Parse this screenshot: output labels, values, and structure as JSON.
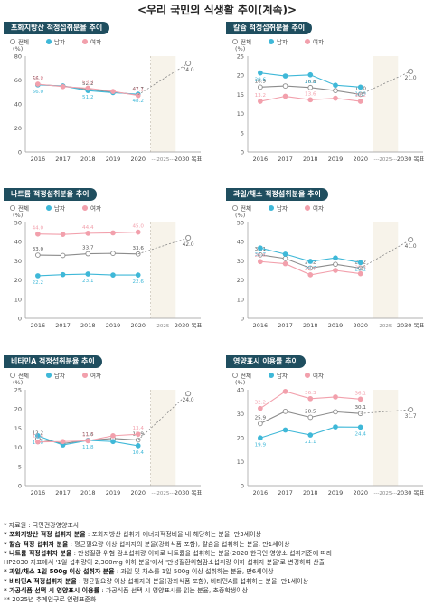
{
  "page_title": "<우리 국민의 식생활 추이(계속)>",
  "legend_labels": {
    "all": "전체",
    "male": "남자",
    "female": "여자"
  },
  "colors": {
    "all": "#8c8c8c",
    "male": "#3fb8d8",
    "female": "#f2a0ac",
    "target": "#888888",
    "header_bg": "#1f4e5f",
    "target_band": "#f7f3ea"
  },
  "chart_data": [
    {
      "id": "fat",
      "type": "line",
      "title": "포화지방산 적정섭취분율 추이",
      "unit": "(%)",
      "x": [
        "2016",
        "2017",
        "2018",
        "2019",
        "2020"
      ],
      "target_band_label": "---2025---",
      "target_label": "2030 목표",
      "ylim": [
        0,
        80
      ],
      "yticks": [
        0,
        20,
        40,
        60,
        80
      ],
      "grid": false,
      "legend": "top-left",
      "series": [
        {
          "key": "all",
          "name": "전체",
          "values": [
            56.2,
            55.0,
            52.2,
            50.0,
            47.7
          ],
          "labels": [
            "56.2",
            "",
            "52.2",
            "",
            "47.7"
          ]
        },
        {
          "key": "male",
          "name": "남자",
          "values": [
            56.0,
            55.0,
            51.2,
            49.5,
            48.2
          ],
          "labels": [
            "56.0",
            "",
            "51.2",
            "",
            "48.2"
          ]
        },
        {
          "key": "female",
          "name": "여자",
          "values": [
            56.6,
            54.5,
            53.2,
            50.5,
            47.1
          ],
          "labels": [
            "56.6",
            "",
            "53.2",
            "",
            "47.1"
          ]
        }
      ],
      "target": {
        "value": 74.0,
        "label": "74.0"
      }
    },
    {
      "id": "calcium",
      "type": "line",
      "title": "칼슘 적정섭취분율 추이",
      "unit": "(%)",
      "x": [
        "2016",
        "2017",
        "2018",
        "2019",
        "2020"
      ],
      "target_band_label": "---2025---",
      "target_label": "2030 목표",
      "ylim": [
        0,
        25
      ],
      "yticks": [
        0,
        5,
        10,
        15,
        20,
        25
      ],
      "grid": false,
      "legend": "top-left",
      "series": [
        {
          "key": "all",
          "name": "전체",
          "values": [
            16.9,
            17.2,
            16.8,
            16.0,
            15.0
          ],
          "labels": [
            "16.9",
            "",
            "16.8",
            "",
            "15.0"
          ]
        },
        {
          "key": "male",
          "name": "남자",
          "values": [
            20.6,
            19.8,
            20.1,
            17.4,
            16.9
          ],
          "labels": [
            "20.6",
            "",
            "20.1",
            "",
            "16.9"
          ]
        },
        {
          "key": "female",
          "name": "여자",
          "values": [
            13.2,
            14.5,
            13.6,
            14.0,
            13.2
          ],
          "labels": [
            "13.2",
            "",
            "13.6",
            "",
            "13.2"
          ]
        }
      ],
      "target": {
        "value": 21.0,
        "label": "21.0"
      }
    },
    {
      "id": "sodium",
      "type": "line",
      "title": "나트륨 적정섭취분율 추이",
      "unit": "(%)",
      "x": [
        "2016",
        "2017",
        "2018",
        "2019",
        "2020"
      ],
      "target_band_label": "---2025---",
      "target_label": "2030 목표",
      "ylim": [
        0,
        50
      ],
      "yticks": [
        0,
        10,
        20,
        30,
        40,
        50
      ],
      "grid": false,
      "legend": "top-left",
      "series": [
        {
          "key": "all",
          "name": "전체",
          "values": [
            33.0,
            32.8,
            33.7,
            33.9,
            33.6
          ],
          "labels": [
            "33.0",
            "",
            "33.7",
            "",
            "33.6"
          ]
        },
        {
          "key": "male",
          "name": "남자",
          "values": [
            22.2,
            22.8,
            23.1,
            22.6,
            22.6
          ],
          "labels": [
            "22.2",
            "",
            "23.1",
            "",
            "22.6"
          ]
        },
        {
          "key": "female",
          "name": "여자",
          "values": [
            44.0,
            43.8,
            44.4,
            44.6,
            45.0
          ],
          "labels": [
            "44.0",
            "",
            "44.4",
            "",
            "45.0"
          ]
        }
      ],
      "target": {
        "value": 42.0,
        "label": "42.0"
      }
    },
    {
      "id": "fruitveg",
      "type": "line",
      "title": "과일/채소 적정섭취분율 추이",
      "unit": "(%)",
      "x": [
        "2016",
        "2017",
        "2018",
        "2019",
        "2020"
      ],
      "target_band_label": "---2025---",
      "target_label": "2030 목표",
      "ylim": [
        0,
        50
      ],
      "yticks": [
        0,
        10,
        20,
        30,
        40,
        50
      ],
      "grid": false,
      "legend": "top-left",
      "series": [
        {
          "key": "all",
          "name": "전체",
          "values": [
            33.1,
            31.2,
            26.2,
            28.2,
            26.2
          ],
          "labels": [
            "33.1",
            "",
            "26.2",
            "",
            "26.2"
          ]
        },
        {
          "key": "male",
          "name": "남자",
          "values": [
            36.7,
            33.5,
            29.7,
            31.5,
            29.1
          ],
          "labels": [
            "36.7",
            "",
            "29.7",
            "",
            "29.1"
          ]
        },
        {
          "key": "female",
          "name": "여자",
          "values": [
            29.6,
            28.5,
            22.7,
            25.0,
            23.3
          ],
          "labels": [
            "29.6",
            "",
            "22.7",
            "",
            "23.3"
          ]
        }
      ],
      "target": {
        "value": 41.0,
        "label": "41.0"
      }
    },
    {
      "id": "vitamin_a",
      "type": "line",
      "title": "비타민A 적정섭취분율 추이",
      "unit": "(%)",
      "x": [
        "2016",
        "2017",
        "2018",
        "2019",
        "2020"
      ],
      "target_band_label": "---2025---",
      "target_label": "2030 목표",
      "ylim": [
        0,
        25
      ],
      "yticks": [
        0,
        5,
        10,
        15,
        20,
        25
      ],
      "grid": false,
      "legend": "top-left",
      "series": [
        {
          "key": "all",
          "name": "전체",
          "values": [
            12.2,
            11.0,
            11.8,
            12.3,
            11.9
          ],
          "labels": [
            "12.2",
            "",
            "11.8",
            "",
            "11.9"
          ]
        },
        {
          "key": "male",
          "name": "남자",
          "values": [
            13.0,
            10.6,
            11.8,
            11.5,
            10.4
          ],
          "labels": [
            "13.0",
            "",
            "11.8",
            "",
            "10.4"
          ]
        },
        {
          "key": "female",
          "name": "여자",
          "values": [
            11.4,
            11.5,
            11.7,
            13.0,
            13.4
          ],
          "labels": [
            "11.4",
            "",
            "11.7",
            "",
            "13.4"
          ]
        }
      ],
      "target": {
        "value": 24.0,
        "label": "24.0"
      }
    },
    {
      "id": "nutrition_label",
      "type": "line",
      "title": "영양표시 이용률 추이",
      "unit": "(%)",
      "x": [
        "2016",
        "2017",
        "2018",
        "2019",
        "2020"
      ],
      "target_band_label": "---2025---",
      "target_label": "2030 목표",
      "ylim": [
        0,
        40
      ],
      "yticks": [
        0,
        10,
        20,
        30,
        40
      ],
      "grid": false,
      "legend": "top-left",
      "series": [
        {
          "key": "all",
          "name": "전체",
          "values": [
            25.9,
            31.0,
            28.5,
            30.8,
            30.1
          ],
          "labels": [
            "25.9",
            "",
            "28.5",
            "",
            "30.1"
          ]
        },
        {
          "key": "male",
          "name": "남자",
          "values": [
            19.9,
            23.2,
            21.1,
            24.5,
            24.4
          ],
          "labels": [
            "19.9",
            "",
            "21.1",
            "",
            "24.4"
          ]
        },
        {
          "key": "female",
          "name": "여자",
          "values": [
            32.2,
            39.3,
            36.3,
            37.0,
            36.1
          ],
          "labels": [
            "32.2",
            "",
            "36.3",
            "",
            "36.1"
          ]
        }
      ],
      "target": {
        "value": 31.7,
        "label": "31.7"
      }
    }
  ],
  "notes": [
    {
      "bold": "",
      "text": "* 자료원 : 국민건강영양조사"
    },
    {
      "bold": "* 포화지방산 적정 섭취자 분율",
      "text": " : 포화지방산 섭취가 에너지적정비율 내 해당하는 분율, 만3세이상"
    },
    {
      "bold": "* 칼슘 적정 섭취자 분율",
      "text": " : 평균필요량 이상 섭취자의 분율(강화식품 포함), 칼슘을 섭취하는 분율, 만1세이상"
    },
    {
      "bold": "* 나트륨 적정섭취자 분율",
      "text": " : 만성질환 위험 감소섭취량 이하로 나트륨을 섭취하는 분율(2020 한국인 영양소 섭취기준에 따라"
    },
    {
      "bold": "",
      "text": "  HP2030 지표에서 '1일 섭취량이 2,300mg 이하 분율'에서 '만성질환위험감소섭취량 이하 섭취자 분율'로 변경하여 산출"
    },
    {
      "bold": "* 과일/채소 1일 500g 이상 섭취자 분율",
      "text": " : 과일 및 채소를 1일 500g 이상 섭취하는 분율, 만6세이상"
    },
    {
      "bold": "* 비타민A 적정섭취자 분율",
      "text": " : 평균필요량 이상 섭취자의 분율(강화식품 포함), 비타민A를 섭취하는 분율, 만1세이상"
    },
    {
      "bold": "* 가공식품 선택 시 영양표시 이용률",
      "text": " : 가공식품 선택 시 영양표시를 읽는 분율, 초중학생이상"
    },
    {
      "bold": "",
      "text": "** 2025년 추계인구로 연령표준화"
    }
  ]
}
